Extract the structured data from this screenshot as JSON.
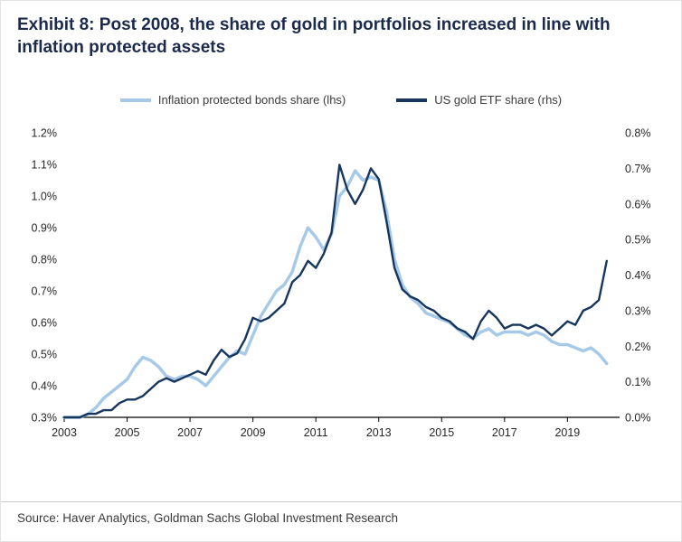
{
  "header": {
    "title": "Exhibit 8: Post 2008, the share of gold in portfolios increased in line with inflation protected assets"
  },
  "footer": {
    "source": "Source: Haver Analytics, Goldman Sachs Global Investment Research"
  },
  "colors": {
    "title_text": "#1b2a4a",
    "axis_text": "#262626",
    "axis_line": "#000000",
    "divider": "#c9c9c9"
  },
  "chart_data": {
    "type": "line",
    "title": "Exhibit 8: Post 2008, the share of gold in portfolios increased in line with inflation protected assets",
    "grid": false,
    "legend_position": "top",
    "x_axis": {
      "range": [
        2003,
        2020.6
      ],
      "ticks": [
        2003,
        2005,
        2007,
        2009,
        2011,
        2013,
        2015,
        2017,
        2019
      ],
      "labels": [
        "2003",
        "2005",
        "2007",
        "2009",
        "2011",
        "2013",
        "2015",
        "2017",
        "2019"
      ]
    },
    "y_axis_left": {
      "range": [
        0.3,
        1.2
      ],
      "ticks": [
        0.3,
        0.4,
        0.5,
        0.6,
        0.7,
        0.8,
        0.9,
        1.0,
        1.1,
        1.2
      ],
      "labels": [
        "0.3%",
        "0.4%",
        "0.5%",
        "0.6%",
        "0.7%",
        "0.8%",
        "0.9%",
        "1.0%",
        "1.1%",
        "1.2%"
      ]
    },
    "y_axis_right": {
      "range": [
        0.0,
        0.8
      ],
      "ticks": [
        0.0,
        0.1,
        0.2,
        0.3,
        0.4,
        0.5,
        0.6,
        0.7,
        0.8
      ],
      "labels": [
        "0.0%",
        "0.1%",
        "0.2%",
        "0.3%",
        "0.4%",
        "0.5%",
        "0.6%",
        "0.7%",
        "0.8%"
      ]
    },
    "x": [
      2003,
      2003.25,
      2003.5,
      2003.75,
      2004,
      2004.25,
      2004.5,
      2004.75,
      2005,
      2005.25,
      2005.5,
      2005.75,
      2006,
      2006.25,
      2006.5,
      2006.75,
      2007,
      2007.25,
      2007.5,
      2007.75,
      2008,
      2008.25,
      2008.5,
      2008.75,
      2009,
      2009.25,
      2009.5,
      2009.75,
      2010,
      2010.25,
      2010.5,
      2010.75,
      2011,
      2011.25,
      2011.5,
      2011.75,
      2012,
      2012.25,
      2012.5,
      2012.75,
      2013,
      2013.25,
      2013.5,
      2013.75,
      2014,
      2014.25,
      2014.5,
      2014.75,
      2015,
      2015.25,
      2015.5,
      2015.75,
      2016,
      2016.25,
      2016.5,
      2016.75,
      2017,
      2017.25,
      2017.5,
      2017.75,
      2018,
      2018.25,
      2018.5,
      2018.75,
      2019,
      2019.25,
      2019.5,
      2019.75,
      2020,
      2020.25
    ],
    "series": [
      {
        "name": "Inflation protected bonds share (lhs)",
        "axis": "left",
        "color": "#a6c9e8",
        "stroke_width": 3.4,
        "values": [
          0.3,
          0.3,
          0.3,
          0.31,
          0.33,
          0.36,
          0.38,
          0.4,
          0.42,
          0.46,
          0.49,
          0.48,
          0.46,
          0.43,
          0.42,
          0.43,
          0.43,
          0.42,
          0.4,
          0.43,
          0.46,
          0.49,
          0.51,
          0.5,
          0.56,
          0.62,
          0.66,
          0.7,
          0.72,
          0.76,
          0.84,
          0.9,
          0.87,
          0.83,
          0.88,
          1.0,
          1.03,
          1.08,
          1.05,
          1.06,
          1.05,
          0.95,
          0.8,
          0.72,
          0.68,
          0.66,
          0.63,
          0.62,
          0.61,
          0.6,
          0.58,
          0.56,
          0.55,
          0.57,
          0.58,
          0.56,
          0.57,
          0.57,
          0.57,
          0.56,
          0.57,
          0.56,
          0.54,
          0.53,
          0.53,
          0.52,
          0.51,
          0.52,
          0.5,
          0.47
        ]
      },
      {
        "name": "US gold ETF share (rhs)",
        "axis": "right",
        "color": "#17365d",
        "stroke_width": 2.4,
        "values": [
          0.0,
          0.0,
          0.0,
          0.01,
          0.01,
          0.02,
          0.02,
          0.04,
          0.05,
          0.05,
          0.06,
          0.08,
          0.1,
          0.11,
          0.1,
          0.11,
          0.12,
          0.13,
          0.12,
          0.16,
          0.19,
          0.17,
          0.18,
          0.22,
          0.28,
          0.27,
          0.28,
          0.3,
          0.32,
          0.38,
          0.4,
          0.44,
          0.42,
          0.46,
          0.52,
          0.71,
          0.64,
          0.6,
          0.64,
          0.7,
          0.67,
          0.55,
          0.42,
          0.36,
          0.34,
          0.33,
          0.31,
          0.3,
          0.28,
          0.27,
          0.25,
          0.24,
          0.22,
          0.27,
          0.3,
          0.28,
          0.25,
          0.26,
          0.26,
          0.25,
          0.26,
          0.25,
          0.23,
          0.25,
          0.27,
          0.26,
          0.3,
          0.31,
          0.33,
          0.44
        ]
      }
    ]
  }
}
